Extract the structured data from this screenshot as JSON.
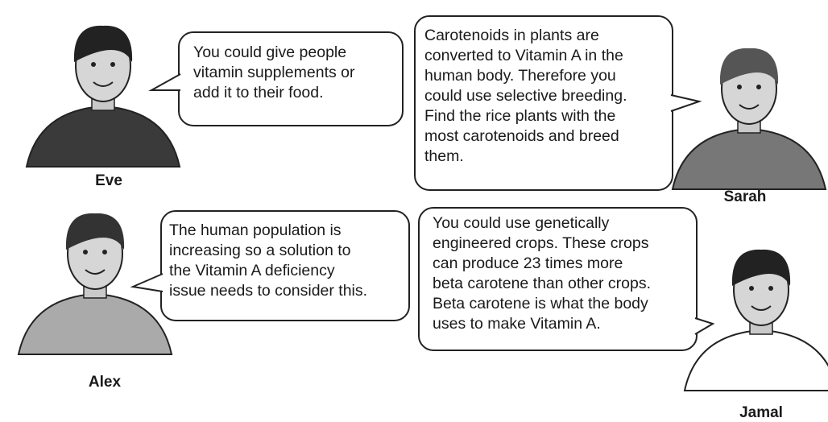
{
  "people": [
    {
      "name": "Eve",
      "speech": [
        "You could give people",
        "vitamin supplements or",
        "add it to their food."
      ]
    },
    {
      "name": "Sarah",
      "speech": [
        "Carotenoids in plants are",
        "converted to Vitamin A in the",
        "human body. Therefore you",
        "could use selective breeding.",
        "Find the rice plants with the",
        "most carotenoids and breed",
        "them."
      ]
    },
    {
      "name": "Alex",
      "speech": [
        "The human population is",
        "increasing so a solution to",
        "the Vitamin A deficiency",
        "issue needs to consider this."
      ]
    },
    {
      "name": "Jamal",
      "speech": [
        "You could use genetically",
        "engineered crops. These crops",
        "can produce 23 times more",
        "beta carotene than other crops.",
        "Beta carotene is what the body",
        "uses to make Vitamin A."
      ]
    }
  ]
}
